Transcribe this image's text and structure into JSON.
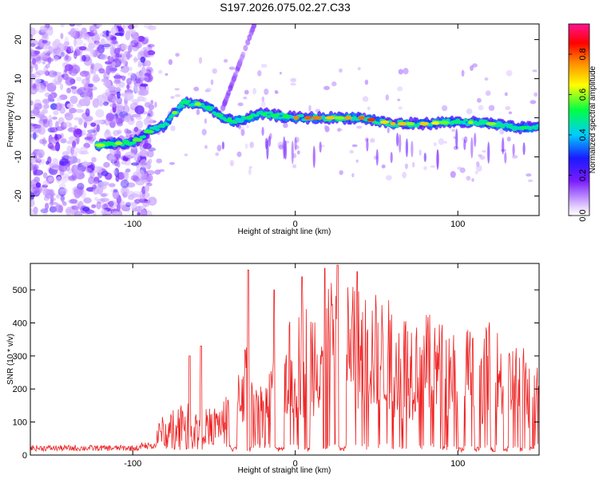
{
  "title": "S197.2026.075.02.27.C33",
  "chart_data": [
    {
      "type": "heatmap",
      "xlabel": "Height of straight line (km)",
      "ylabel": "Frequency (Hz)",
      "xlim": [
        -163,
        150
      ],
      "ylim": [
        -25,
        24
      ],
      "xticks": [
        -100,
        0,
        100
      ],
      "yticks": [
        -20,
        -10,
        0,
        10,
        20
      ],
      "colorbar": {
        "label": "Normalized spectral amplitude",
        "range": [
          0,
          0.95
        ],
        "ticks": [
          "0.0",
          "0.2",
          "0.4",
          "0.6",
          "0.8"
        ]
      },
      "ridge": [
        {
          "x": -120,
          "y": -7
        },
        {
          "x": -110,
          "y": -6.5
        },
        {
          "x": -100,
          "y": -6.5
        },
        {
          "x": -95,
          "y": -5
        },
        {
          "x": -88,
          "y": -3
        },
        {
          "x": -80,
          "y": -2
        },
        {
          "x": -75,
          "y": 1
        },
        {
          "x": -68,
          "y": 4
        },
        {
          "x": -60,
          "y": 3.5
        },
        {
          "x": -52,
          "y": 2.5
        },
        {
          "x": -45,
          "y": 0
        },
        {
          "x": -38,
          "y": -1
        },
        {
          "x": -20,
          "y": 1
        },
        {
          "x": 0,
          "y": 0
        },
        {
          "x": 20,
          "y": 0
        },
        {
          "x": 40,
          "y": 0
        },
        {
          "x": 60,
          "y": -1.5
        },
        {
          "x": 80,
          "y": -1.5
        },
        {
          "x": 100,
          "y": -1
        },
        {
          "x": 120,
          "y": -1.5
        },
        {
          "x": 135,
          "y": -2.5
        },
        {
          "x": 150,
          "y": -2.5
        }
      ]
    },
    {
      "type": "line",
      "xlabel": "Height of straight line (km)",
      "ylabel": "SNR (10 * v/v)",
      "xlim": [
        -163,
        150
      ],
      "ylim": [
        0,
        580
      ],
      "xticks": [
        -100,
        0,
        100
      ],
      "yticks": [
        0,
        100,
        200,
        300,
        400,
        500
      ],
      "color": "#ee2222",
      "envelope": [
        {
          "x": -163,
          "y": 20
        },
        {
          "x": -110,
          "y": 20
        },
        {
          "x": -100,
          "y": 25
        },
        {
          "x": -90,
          "y": 40
        },
        {
          "x": -80,
          "y": 90
        },
        {
          "x": -70,
          "y": 120
        },
        {
          "x": -60,
          "y": 90
        },
        {
          "x": -45,
          "y": 110
        },
        {
          "x": -38,
          "y": 180
        },
        {
          "x": -30,
          "y": 250
        },
        {
          "x": -20,
          "y": 140
        },
        {
          "x": -10,
          "y": 250
        },
        {
          "x": 0,
          "y": 300
        },
        {
          "x": 10,
          "y": 330
        },
        {
          "x": 20,
          "y": 360
        },
        {
          "x": 30,
          "y": 380
        },
        {
          "x": 40,
          "y": 350
        },
        {
          "x": 50,
          "y": 340
        },
        {
          "x": 60,
          "y": 320
        },
        {
          "x": 70,
          "y": 300
        },
        {
          "x": 80,
          "y": 300
        },
        {
          "x": 90,
          "y": 280
        },
        {
          "x": 100,
          "y": 280
        },
        {
          "x": 110,
          "y": 260
        },
        {
          "x": 120,
          "y": 280
        },
        {
          "x": 130,
          "y": 250
        },
        {
          "x": 140,
          "y": 230
        },
        {
          "x": 150,
          "y": 200
        }
      ]
    }
  ]
}
